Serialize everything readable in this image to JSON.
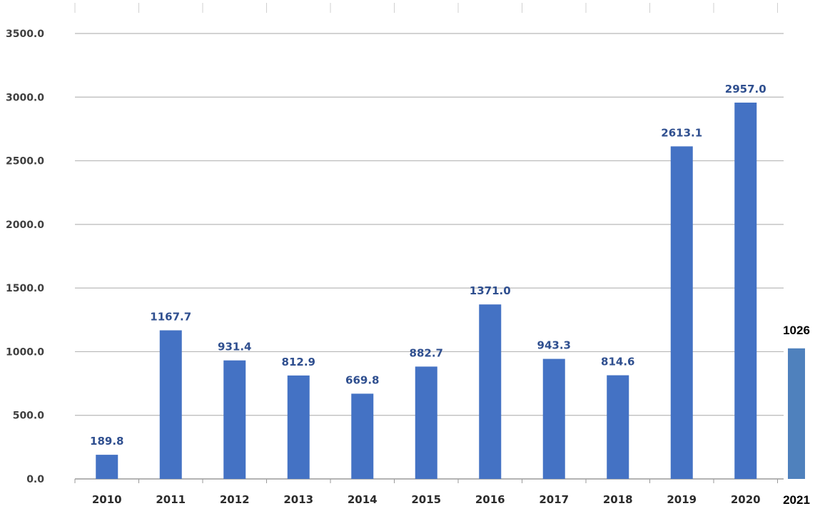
{
  "chart_data": {
    "type": "bar",
    "title": "",
    "xlabel": "",
    "ylabel": "",
    "categories": [
      "2010",
      "2011",
      "2012",
      "2013",
      "2014",
      "2015",
      "2016",
      "2017",
      "2018",
      "2019",
      "2020"
    ],
    "values": [
      189.8,
      1167.7,
      931.4,
      812.9,
      669.8,
      882.7,
      1371.0,
      943.3,
      814.6,
      2613.1,
      2957.0
    ],
    "value_labels": [
      "189.8",
      "1167.7",
      "931.4",
      "812.9",
      "669.8",
      "882.7",
      "1371.0",
      "943.3",
      "814.6",
      "2613.1",
      "2957.0"
    ],
    "ylim": [
      0,
      3500
    ],
    "yticks": [
      "0.0",
      "500.0",
      "1000.0",
      "1500.0",
      "2000.0",
      "2500.0",
      "3000.0",
      "3500.0"
    ],
    "grid": true,
    "legend": "none",
    "bar_color": "#4472c4",
    "label_color": "#2f4f8f",
    "extra_bar": {
      "category": "2021",
      "value": 1026,
      "value_label": "1026",
      "color": "#4f81bd",
      "label_color": "#000000"
    }
  }
}
